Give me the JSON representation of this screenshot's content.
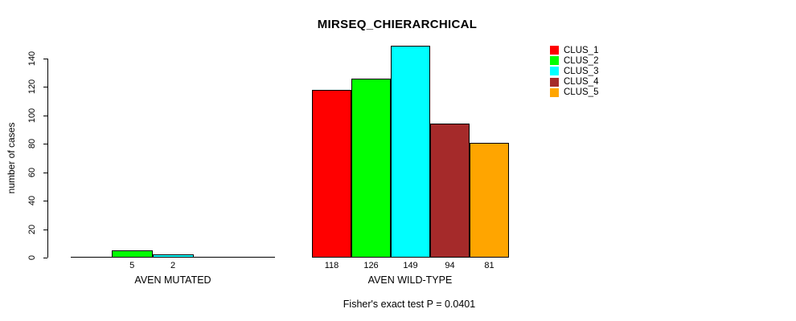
{
  "chart_data": {
    "type": "bar",
    "title": "MIRSEQ_CHIERARCHICAL",
    "ylabel": "number of cases",
    "xlabel": "",
    "ylim": [
      0,
      140
    ],
    "yticks": [
      0,
      20,
      40,
      60,
      80,
      100,
      120,
      140
    ],
    "grid": false,
    "legend_position": "top-right",
    "categories": [
      "AVEN MUTATED",
      "AVEN WILD-TYPE"
    ],
    "series": [
      {
        "name": "CLUS_1",
        "color": "#ff0000",
        "values": [
          0,
          118
        ]
      },
      {
        "name": "CLUS_2",
        "color": "#00ff00",
        "values": [
          5,
          126
        ]
      },
      {
        "name": "CLUS_3",
        "color": "#00ffff",
        "values": [
          2,
          149
        ]
      },
      {
        "name": "CLUS_4",
        "color": "#a52a2a",
        "values": [
          0,
          94
        ]
      },
      {
        "name": "CLUS_5",
        "color": "#ffa500",
        "values": [
          0,
          81
        ]
      }
    ],
    "bar_value_labels": [
      [
        "",
        "118"
      ],
      [
        "5",
        "126"
      ],
      [
        "2",
        "149"
      ],
      [
        "",
        "94"
      ],
      [
        "",
        "81"
      ]
    ],
    "annotation": "Fisher's exact test P = 0.0401",
    "background": "#ffffff",
    "axis_color": "#000000"
  }
}
